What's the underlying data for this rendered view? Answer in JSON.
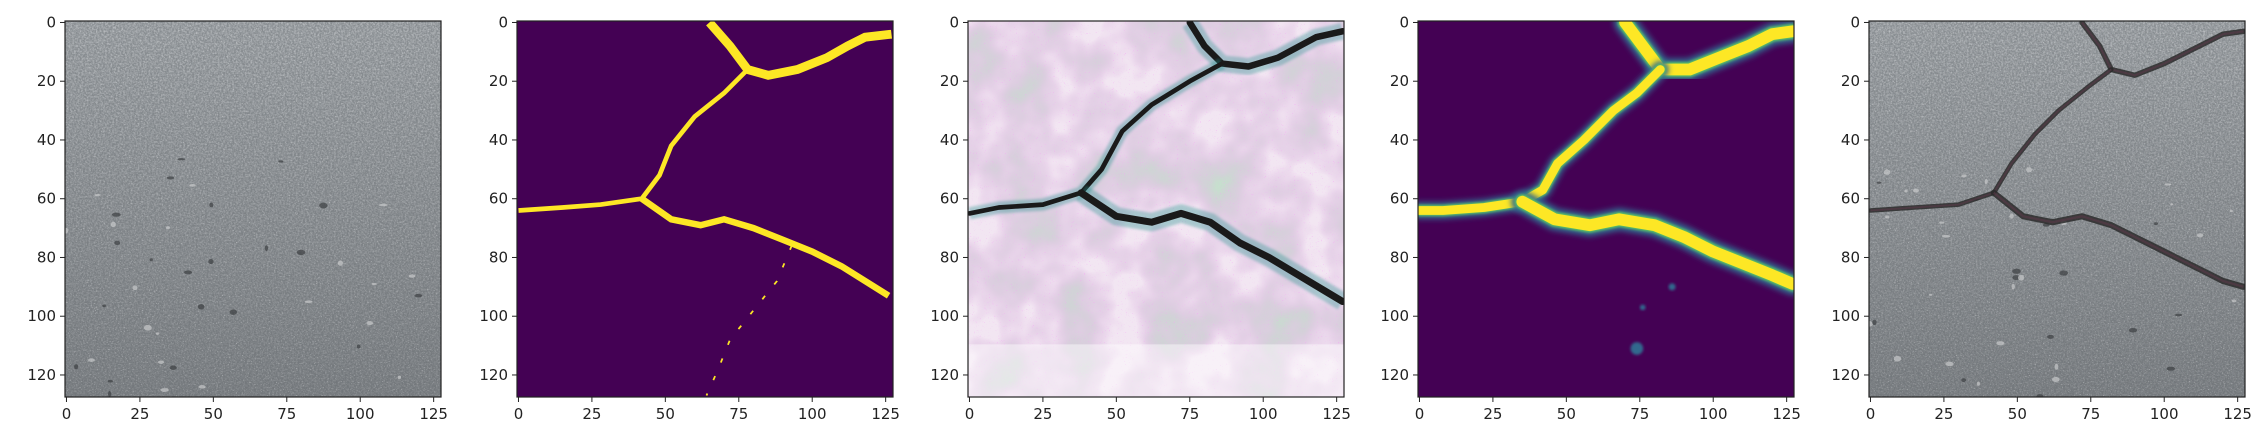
{
  "figure": {
    "panel_count": 5,
    "colors": {
      "axis": "#222222",
      "viridis_low": "#440154",
      "viridis_mid_blue": "#31688e",
      "viridis_teal": "#21918c",
      "viridis_green": "#5ec962",
      "viridis_high": "#fde725",
      "asphalt": "#8a8f93",
      "asphalt_dark": "#5e6266",
      "asphalt_light": "#a5a9ad",
      "crack": "#1a1a1a",
      "magenta": "#d66fd6",
      "pale": "#f2e6f2"
    }
  },
  "chart_data": [
    {
      "type": "image",
      "panel": "input-photo",
      "content": "asphalt pavement photo, no visible crack",
      "xlim": [
        0,
        127
      ],
      "ylim": [
        127,
        0
      ],
      "xticks": [
        0,
        25,
        50,
        75,
        100,
        125
      ],
      "yticks": [
        0,
        20,
        40,
        60,
        80,
        100,
        120
      ],
      "xtick_labels": [
        "0",
        "25",
        "50",
        "75",
        "100",
        "125"
      ],
      "ytick_labels": [
        "0",
        "20",
        "40",
        "60",
        "80",
        "100",
        "120"
      ]
    },
    {
      "type": "heatmap",
      "panel": "binary-mask",
      "content": "binary crack mask, yellow crack on purple background",
      "xlim": [
        0,
        127
      ],
      "ylim": [
        127,
        0
      ],
      "xticks": [
        0,
        25,
        50,
        75,
        100,
        125
      ],
      "yticks": [
        0,
        20,
        40,
        60,
        80,
        100,
        120
      ],
      "xtick_labels": [
        "0",
        "25",
        "50",
        "75",
        "100",
        "125"
      ],
      "ytick_labels": [
        "0",
        "20",
        "40",
        "60",
        "80",
        "100",
        "120"
      ],
      "cracks": [
        {
          "points": [
            [
              65,
              0
            ],
            [
              72,
              8
            ],
            [
              78,
              16
            ],
            [
              85,
              18
            ],
            [
              95,
              16
            ],
            [
              105,
              12
            ],
            [
              112,
              8
            ],
            [
              118,
              5
            ],
            [
              127,
              4
            ]
          ],
          "width": 3
        },
        {
          "points": [
            [
              78,
              16
            ],
            [
              70,
              24
            ],
            [
              60,
              32
            ],
            [
              52,
              42
            ],
            [
              48,
              52
            ],
            [
              42,
              60
            ],
            [
              28,
              62
            ],
            [
              15,
              63
            ],
            [
              0,
              64
            ]
          ],
          "width": 1.6
        },
        {
          "points": [
            [
              42,
              60
            ],
            [
              52,
              67
            ],
            [
              62,
              69
            ],
            [
              70,
              67
            ],
            [
              80,
              70
            ],
            [
              90,
              74
            ],
            [
              100,
              78
            ],
            [
              110,
              83
            ],
            [
              118,
              88
            ],
            [
              126,
              93
            ]
          ],
          "width": 2.2
        },
        {
          "points": [
            [
              93,
              76
            ],
            [
              88,
              88
            ],
            [
              80,
              98
            ],
            [
              72,
              108
            ],
            [
              68,
              118
            ],
            [
              64,
              127
            ]
          ],
          "width": 0.6
        }
      ]
    },
    {
      "type": "image",
      "panel": "feature-visualization",
      "content": "pink/magenta false-color image with dark crack lines",
      "xlim": [
        0,
        127
      ],
      "ylim": [
        127,
        0
      ],
      "xticks": [
        0,
        25,
        50,
        75,
        100,
        125
      ],
      "yticks": [
        0,
        20,
        40,
        60,
        80,
        100,
        120
      ],
      "xtick_labels": [
        "0",
        "25",
        "50",
        "75",
        "100",
        "125"
      ],
      "ytick_labels": [
        "0",
        "20",
        "40",
        "60",
        "80",
        "100",
        "120"
      ],
      "cracks": [
        {
          "points": [
            [
              75,
              0
            ],
            [
              80,
              8
            ],
            [
              86,
              14
            ],
            [
              95,
              15
            ],
            [
              105,
              12
            ],
            [
              118,
              5
            ],
            [
              127,
              3
            ]
          ],
          "width": 2.2
        },
        {
          "points": [
            [
              86,
              14
            ],
            [
              75,
              20
            ],
            [
              62,
              28
            ],
            [
              52,
              37
            ],
            [
              45,
              50
            ],
            [
              38,
              58
            ],
            [
              25,
              62
            ],
            [
              10,
              63
            ],
            [
              0,
              65
            ]
          ],
          "width": 1.6
        },
        {
          "points": [
            [
              38,
              58
            ],
            [
              50,
              66
            ],
            [
              62,
              68
            ],
            [
              72,
              65
            ],
            [
              82,
              68
            ],
            [
              92,
              75
            ],
            [
              102,
              80
            ],
            [
              112,
              86
            ],
            [
              122,
              92
            ],
            [
              127,
              95
            ]
          ],
          "width": 2.4
        }
      ]
    },
    {
      "type": "heatmap",
      "panel": "predicted-probability",
      "content": "smooth predicted crack probability map",
      "xlim": [
        0,
        127
      ],
      "ylim": [
        127,
        0
      ],
      "xticks": [
        0,
        25,
        50,
        75,
        100,
        125
      ],
      "yticks": [
        0,
        20,
        40,
        60,
        80,
        100,
        120
      ],
      "xtick_labels": [
        "0",
        "25",
        "50",
        "75",
        "100",
        "125"
      ],
      "ytick_labels": [
        "0",
        "20",
        "40",
        "60",
        "80",
        "100",
        "120"
      ],
      "cracks": [
        {
          "points": [
            [
              70,
              0
            ],
            [
              76,
              8
            ],
            [
              82,
              16
            ],
            [
              92,
              16
            ],
            [
              102,
              12
            ],
            [
              112,
              8
            ],
            [
              120,
              4
            ],
            [
              127,
              3
            ]
          ],
          "width": 4
        },
        {
          "points": [
            [
              82,
              16
            ],
            [
              74,
              24
            ],
            [
              66,
              30
            ],
            [
              56,
              40
            ],
            [
              47,
              48
            ],
            [
              42,
              57
            ],
            [
              35,
              61
            ],
            [
              22,
              63
            ],
            [
              8,
              64
            ],
            [
              0,
              64
            ]
          ],
          "width": 3
        },
        {
          "points": [
            [
              35,
              61
            ],
            [
              46,
              67
            ],
            [
              58,
              69
            ],
            [
              68,
              67
            ],
            [
              80,
              69
            ],
            [
              90,
              73
            ],
            [
              100,
              78
            ],
            [
              110,
              82
            ],
            [
              120,
              86
            ],
            [
              127,
              89
            ]
          ],
          "width": 4
        }
      ],
      "blobs": [
        {
          "x": 74,
          "y": 111,
          "r": 1.8
        },
        {
          "x": 86,
          "y": 90,
          "r": 1.0
        },
        {
          "x": 76,
          "y": 97,
          "r": 0.8
        }
      ]
    },
    {
      "type": "image",
      "panel": "overlay",
      "content": "asphalt photo with detected crack overlaid",
      "xlim": [
        0,
        127
      ],
      "ylim": [
        127,
        0
      ],
      "xticks": [
        0,
        25,
        50,
        75,
        100,
        125
      ],
      "yticks": [
        0,
        20,
        40,
        60,
        80,
        100,
        120
      ],
      "xtick_labels": [
        "0",
        "25",
        "50",
        "75",
        "100",
        "125"
      ],
      "ytick_labels": [
        "0",
        "20",
        "40",
        "60",
        "80",
        "100",
        "120"
      ],
      "cracks": [
        {
          "points": [
            [
              72,
              0
            ],
            [
              78,
              8
            ],
            [
              82,
              16
            ],
            [
              90,
              18
            ],
            [
              100,
              14
            ],
            [
              112,
              8
            ],
            [
              120,
              4
            ],
            [
              127,
              3
            ]
          ],
          "width": 1.4
        },
        {
          "points": [
            [
              82,
              16
            ],
            [
              74,
              22
            ],
            [
              64,
              30
            ],
            [
              56,
              38
            ],
            [
              48,
              48
            ],
            [
              42,
              58
            ],
            [
              30,
              62
            ],
            [
              15,
              63
            ],
            [
              0,
              64
            ]
          ],
          "width": 1.2
        },
        {
          "points": [
            [
              42,
              58
            ],
            [
              52,
              66
            ],
            [
              62,
              68
            ],
            [
              72,
              66
            ],
            [
              82,
              69
            ],
            [
              92,
              74
            ],
            [
              102,
              79
            ],
            [
              112,
              84
            ],
            [
              120,
              88
            ],
            [
              127,
              90
            ]
          ],
          "width": 1.6
        }
      ]
    }
  ]
}
